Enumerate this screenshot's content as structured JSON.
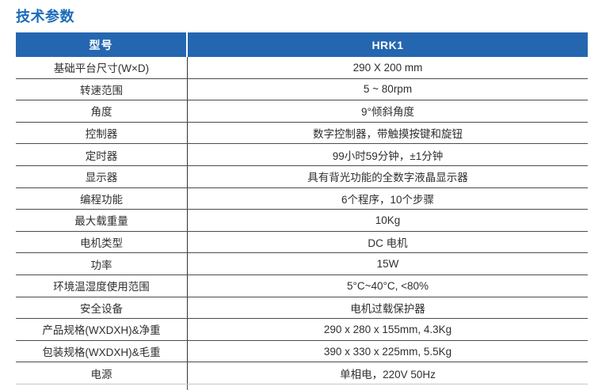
{
  "page": {
    "title": "技术参数"
  },
  "colors": {
    "title_blue": "#1B6CB9",
    "header_blue": "#2467B0",
    "row_border": "#4b4b4b",
    "bottom_border_light": "#c6c6c6",
    "text": "#2f2f2f",
    "header_text": "#ffffff"
  },
  "table": {
    "header": {
      "param_label": "型号",
      "model_label": "HRK1"
    },
    "rows": [
      {
        "label": "基础平台尺寸(W×D)",
        "value": "290 X 200 mm"
      },
      {
        "label": "转速范围",
        "value": "5 ~ 80rpm"
      },
      {
        "label": "角度",
        "value": "9°倾斜角度"
      },
      {
        "label": "控制器",
        "value": "数字控制器，带触摸按键和旋钮"
      },
      {
        "label": "定时器",
        "value": "99小时59分钟，±1分钟"
      },
      {
        "label": "显示器",
        "value": "具有背光功能的全数字液晶显示器"
      },
      {
        "label": "编程功能",
        "value": "6个程序，10个步骤"
      },
      {
        "label": "最大载重量",
        "value": "10Kg"
      },
      {
        "label": "电机类型",
        "value": "DC 电机"
      },
      {
        "label": "功率",
        "value": "15W"
      },
      {
        "label": "环境温湿度使用范围",
        "value": "5°C~40°C, <80%"
      },
      {
        "label": "安全设备",
        "value": "电机过载保护器"
      },
      {
        "label": "产品规格(WXDXH)&净重",
        "value": "290 x 280 x 155mm, 4.3Kg"
      },
      {
        "label": "包装规格(WXDXH)&毛重",
        "value": "390 x 330 x 225mm, 5.5Kg"
      },
      {
        "label": "电源",
        "value": "单相电，220V 50Hz"
      }
    ]
  }
}
